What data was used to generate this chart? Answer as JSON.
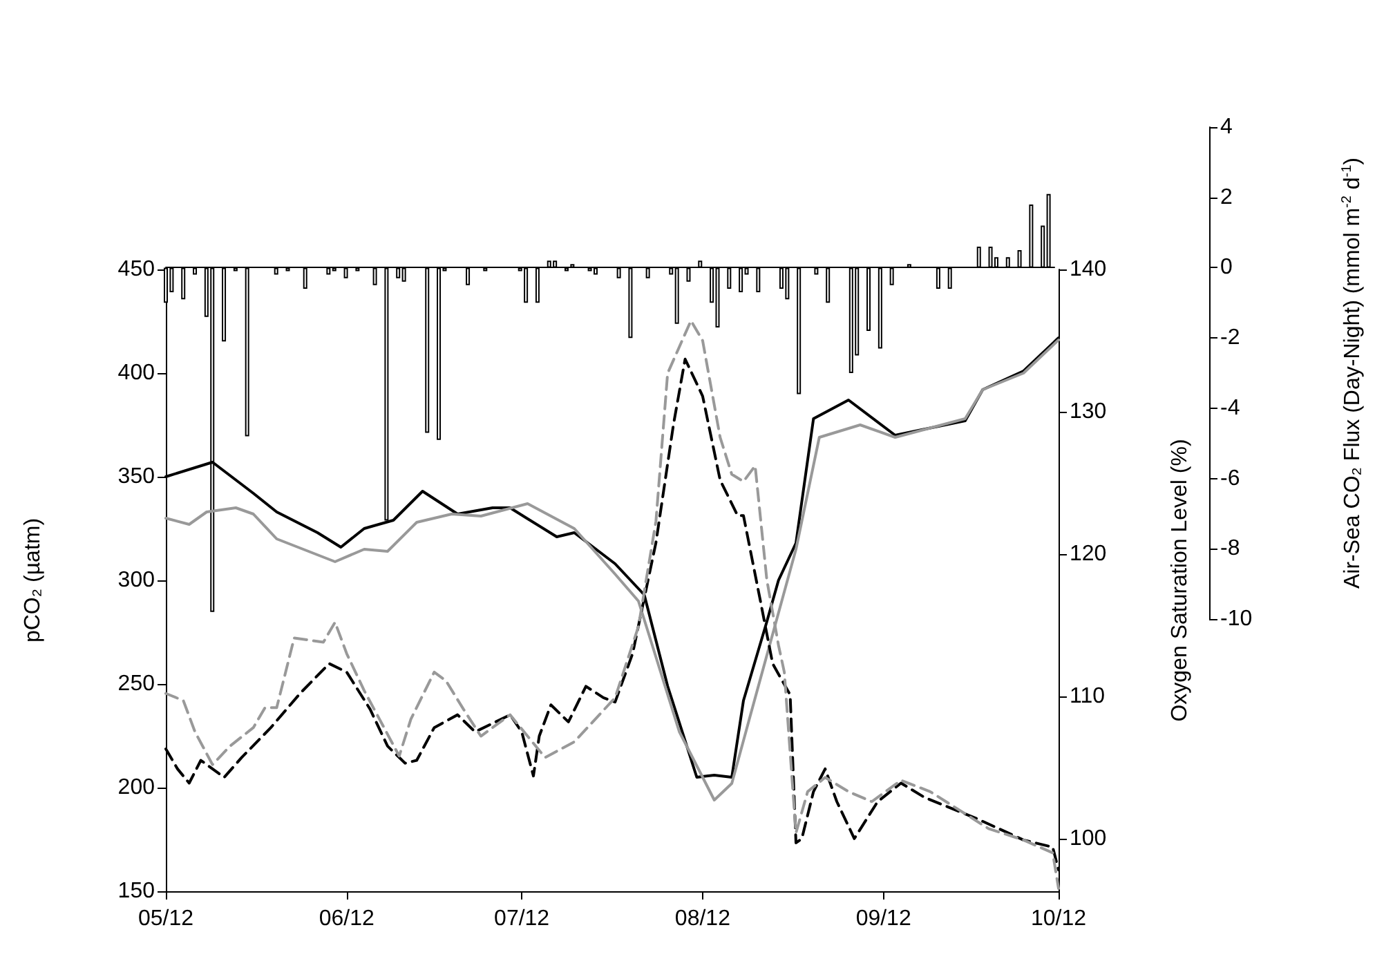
{
  "chart_data": {
    "type": "line",
    "ylabel": "pCO₂ (µatm)",
    "y2label": "Oxygen Saturation Level (%)",
    "y3label": "Air-Sea CO₂ Flux (Day-Night) (mmol m$^{-2}$ d$^{-1}$)",
    "xlim": [
      "2012-05-01",
      "2012-10-01"
    ],
    "xticks": [
      {
        "value": "2012-05-01",
        "label": "05/12"
      },
      {
        "value": "2012-06-01",
        "label": "06/12"
      },
      {
        "value": "2012-07-01",
        "label": "07/12"
      },
      {
        "value": "2012-08-01",
        "label": "08/12"
      },
      {
        "value": "2012-09-01",
        "label": "09/12"
      },
      {
        "value": "2012-10-01",
        "label": "10/12"
      }
    ],
    "ylim": [
      150,
      450
    ],
    "yticks": [
      150,
      200,
      250,
      300,
      350,
      400,
      450
    ],
    "y2lim": [
      96.3,
      140
    ],
    "y2ticks": [
      100,
      110,
      120,
      130,
      140
    ],
    "y3lim": [
      -10,
      4
    ],
    "y3ticks": [
      -10,
      -8,
      -6,
      -4,
      -2,
      0,
      2,
      4
    ],
    "grid": false,
    "marker": "none",
    "series": [
      {
        "type": "bar",
        "axis": "y3",
        "color": "#ffffff",
        "x": [
          "2012-05-01",
          "2012-05-02",
          "2012-05-04",
          "2012-05-06",
          "2012-05-08",
          "2012-05-09",
          "2012-05-11",
          "2012-05-13",
          "2012-05-15",
          "2012-05-20",
          "2012-05-22",
          "2012-05-25",
          "2012-05-29",
          "2012-05-30",
          "2012-06-01",
          "2012-06-03",
          "2012-06-06",
          "2012-06-08",
          "2012-06-10",
          "2012-06-11",
          "2012-06-15",
          "2012-06-17",
          "2012-06-18",
          "2012-06-22",
          "2012-06-25",
          "2012-07-01",
          "2012-07-02",
          "2012-07-04",
          "2012-07-06",
          "2012-07-07",
          "2012-07-09",
          "2012-07-10",
          "2012-07-13",
          "2012-07-14",
          "2012-07-18",
          "2012-07-20",
          "2012-07-23",
          "2012-07-27",
          "2012-07-28",
          "2012-07-30",
          "2012-08-01",
          "2012-08-03",
          "2012-08-04",
          "2012-08-06",
          "2012-08-08",
          "2012-08-09",
          "2012-08-11",
          "2012-08-15",
          "2012-08-16",
          "2012-08-18",
          "2012-08-21",
          "2012-08-23",
          "2012-08-27",
          "2012-08-28",
          "2012-08-30",
          "2012-09-01",
          "2012-09-03",
          "2012-09-06",
          "2012-09-11",
          "2012-09-13",
          "2012-09-18",
          "2012-09-20",
          "2012-09-21",
          "2012-09-23",
          "2012-09-25",
          "2012-09-27",
          "2012-09-29",
          "2012-09-30"
        ],
        "values": [
          -1.0,
          -0.7,
          -0.9,
          -0.2,
          -1.4,
          -9.8,
          -2.1,
          -0.1,
          -4.8,
          -0.2,
          -0.1,
          -0.6,
          -0.2,
          -0.1,
          -0.3,
          -0.1,
          -0.5,
          -7.2,
          -0.3,
          -0.4,
          -4.7,
          -4.9,
          -0.1,
          -0.5,
          -0.1,
          -0.1,
          -1.0,
          -1.0,
          0.2,
          0.2,
          -0.1,
          0.1,
          -0.1,
          -0.2,
          -0.3,
          -2.0,
          -0.3,
          -0.2,
          -1.6,
          -0.4,
          0.2,
          -1.0,
          -1.7,
          -0.6,
          -0.7,
          -0.2,
          -0.7,
          -0.6,
          -0.9,
          -3.6,
          -0.2,
          -1.0,
          -3.0,
          -2.5,
          -1.8,
          -2.3,
          -0.5,
          0.1,
          -0.6,
          -0.6,
          0.6,
          0.6,
          0.3,
          0.3,
          0.5,
          1.8,
          1.2,
          2.1
        ]
      },
      {
        "color": "#000000",
        "line_style": "solid",
        "x": [
          "2012-05-01",
          "2012-05-09",
          "2012-05-16",
          "2012-05-20",
          "2012-05-27",
          "2012-05-31",
          "2012-06-04",
          "2012-06-09",
          "2012-06-14",
          "2012-06-20",
          "2012-06-26",
          "2012-06-29",
          "2012-07-07",
          "2012-07-10",
          "2012-07-17",
          "2012-07-22",
          "2012-07-26",
          "2012-07-31",
          "2012-08-03",
          "2012-08-06",
          "2012-08-08",
          "2012-08-12",
          "2012-08-14",
          "2012-08-17",
          "2012-08-20",
          "2012-08-26",
          "2012-09-03",
          "2012-09-15",
          "2012-09-18",
          "2012-09-25",
          "2012-10-01"
        ],
        "values": [
          350,
          357,
          342,
          333,
          323,
          316,
          325,
          329,
          343,
          332,
          335,
          335,
          321,
          323,
          308,
          293,
          249,
          205,
          206,
          205,
          242,
          280,
          300,
          318,
          378,
          387,
          370,
          377,
          392,
          401,
          417
        ]
      },
      {
        "color": "#999999",
        "line_style": "solid",
        "x": [
          "2012-05-01",
          "2012-05-05",
          "2012-05-08",
          "2012-05-13",
          "2012-05-16",
          "2012-05-20",
          "2012-05-30",
          "2012-06-04",
          "2012-06-08",
          "2012-06-13",
          "2012-06-19",
          "2012-06-24",
          "2012-07-02",
          "2012-07-10",
          "2012-07-17",
          "2012-07-21",
          "2012-07-28",
          "2012-08-03",
          "2012-08-06",
          "2012-08-09",
          "2012-08-17",
          "2012-08-21",
          "2012-08-28",
          "2012-09-03",
          "2012-09-15",
          "2012-09-18",
          "2012-09-25",
          "2012-10-01"
        ],
        "values": [
          330,
          327,
          333,
          335,
          332,
          320,
          309,
          315,
          314,
          328,
          332,
          331,
          337,
          325,
          303,
          290,
          227,
          194,
          202,
          233,
          315,
          369,
          375,
          369,
          378,
          392,
          400,
          416
        ]
      },
      {
        "axis": "y2",
        "color": "#000000",
        "line_style": "dashed",
        "x": [
          "2012-05-01",
          "2012-05-03",
          "2012-05-05",
          "2012-05-07",
          "2012-05-11",
          "2012-05-14",
          "2012-05-19",
          "2012-05-24",
          "2012-05-29",
          "2012-06-01",
          "2012-06-05",
          "2012-06-08",
          "2012-06-11",
          "2012-06-13",
          "2012-06-16",
          "2012-06-20",
          "2012-06-23",
          "2012-06-29",
          "2012-07-01",
          "2012-07-03",
          "2012-07-04",
          "2012-07-06",
          "2012-07-09",
          "2012-07-12",
          "2012-07-15",
          "2012-07-17",
          "2012-07-20",
          "2012-07-24",
          "2012-07-27",
          "2012-07-29",
          "2012-08-01",
          "2012-08-04",
          "2012-08-07",
          "2012-08-08",
          "2012-08-11",
          "2012-08-13",
          "2012-08-16",
          "2012-08-17",
          "2012-08-18",
          "2012-08-20",
          "2012-08-22",
          "2012-08-24",
          "2012-08-27",
          "2012-08-31",
          "2012-09-04",
          "2012-09-08",
          "2012-09-17",
          "2012-09-25",
          "2012-09-30",
          "2012-10-01"
        ],
        "values": [
          106.3,
          104.9,
          103.9,
          105.5,
          104.3,
          105.7,
          107.8,
          110.2,
          112.3,
          111.7,
          109.1,
          106.5,
          105.3,
          105.5,
          107.8,
          108.7,
          107.5,
          108.7,
          107.5,
          104.4,
          107.2,
          109.4,
          108.2,
          110.7,
          109.9,
          109.6,
          113.0,
          120.8,
          129.1,
          133.7,
          131.1,
          125.2,
          122.7,
          122.7,
          116.5,
          112.3,
          110.1,
          99.7,
          100.0,
          103.3,
          104.9,
          102.6,
          100.0,
          102.6,
          103.9,
          102.9,
          101.4,
          99.9,
          99.4,
          97.8
        ]
      },
      {
        "axis": "y2",
        "color": "#999999",
        "line_style": "dashed",
        "x": [
          "2012-05-01",
          "2012-05-04",
          "2012-05-06",
          "2012-05-09",
          "2012-05-12",
          "2012-05-16",
          "2012-05-18",
          "2012-05-20",
          "2012-05-23",
          "2012-05-28",
          "2012-05-30",
          "2012-06-01",
          "2012-06-04",
          "2012-06-10",
          "2012-06-12",
          "2012-06-16",
          "2012-06-18",
          "2012-06-21",
          "2012-06-24",
          "2012-06-29",
          "2012-07-05",
          "2012-07-10",
          "2012-07-17",
          "2012-07-21",
          "2012-07-24",
          "2012-07-26",
          "2012-07-30",
          "2012-08-01",
          "2012-08-04",
          "2012-08-06",
          "2012-08-08",
          "2012-08-10",
          "2012-08-12",
          "2012-08-14",
          "2012-08-15",
          "2012-08-17",
          "2012-08-19",
          "2012-08-22",
          "2012-08-26",
          "2012-08-30",
          "2012-09-04",
          "2012-09-09",
          "2012-09-19",
          "2012-09-25",
          "2012-09-30",
          "2012-10-01"
        ],
        "values": [
          110.2,
          109.7,
          107.5,
          105.2,
          106.5,
          107.8,
          109.2,
          109.2,
          114.1,
          113.8,
          115.2,
          113.0,
          110.4,
          105.8,
          108.4,
          111.7,
          111.1,
          109.1,
          107.2,
          108.7,
          105.7,
          106.8,
          109.9,
          114.9,
          122.3,
          132.7,
          136.4,
          135.0,
          128.2,
          125.6,
          125.1,
          126.2,
          118.2,
          113.6,
          111.7,
          100.4,
          103.3,
          104.3,
          103.3,
          102.6,
          104.1,
          103.3,
          100.7,
          99.9,
          99.0,
          96.5
        ]
      }
    ]
  }
}
